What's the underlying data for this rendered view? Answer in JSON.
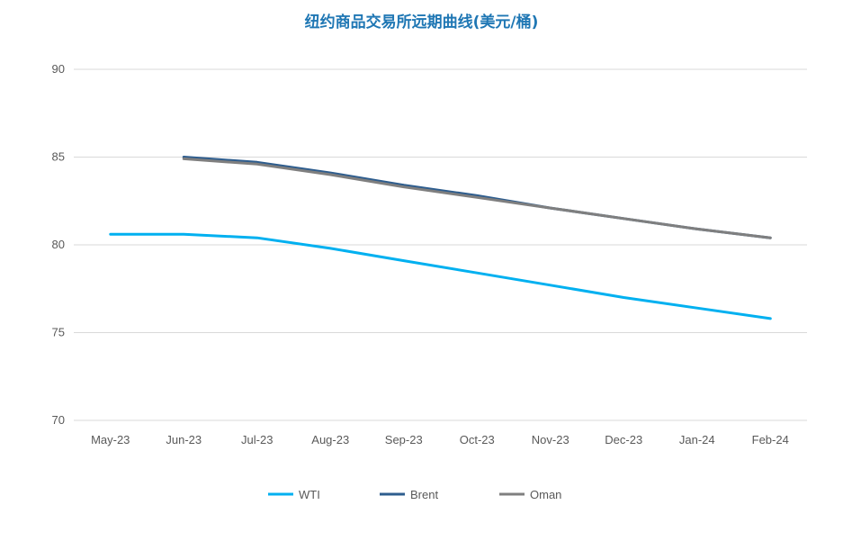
{
  "chart_data": {
    "type": "line",
    "title": "纽约商品交易所远期曲线(美元/桶)",
    "categories": [
      "May-23",
      "Jun-23",
      "Jul-23",
      "Aug-23",
      "Sep-23",
      "Oct-23",
      "Nov-23",
      "Dec-23",
      "Jan-24",
      "Feb-24"
    ],
    "y_ticks": [
      70,
      75,
      80,
      85,
      90
    ],
    "ylim": [
      70,
      90
    ],
    "grid": true,
    "legend_position": "bottom",
    "series": [
      {
        "name": "WTI",
        "color": "#00b0f0",
        "values": [
          80.6,
          80.6,
          80.4,
          79.8,
          79.1,
          78.4,
          77.7,
          77.0,
          76.4,
          75.8
        ]
      },
      {
        "name": "Brent",
        "color": "#2e5d8e",
        "values": [
          null,
          85.0,
          84.7,
          84.1,
          83.4,
          82.8,
          82.1,
          81.5,
          80.9,
          80.4
        ]
      },
      {
        "name": "Oman",
        "color": "#7f7f7f",
        "values": [
          null,
          84.9,
          84.6,
          84.0,
          83.3,
          82.7,
          82.1,
          81.5,
          80.9,
          80.4
        ]
      }
    ]
  }
}
